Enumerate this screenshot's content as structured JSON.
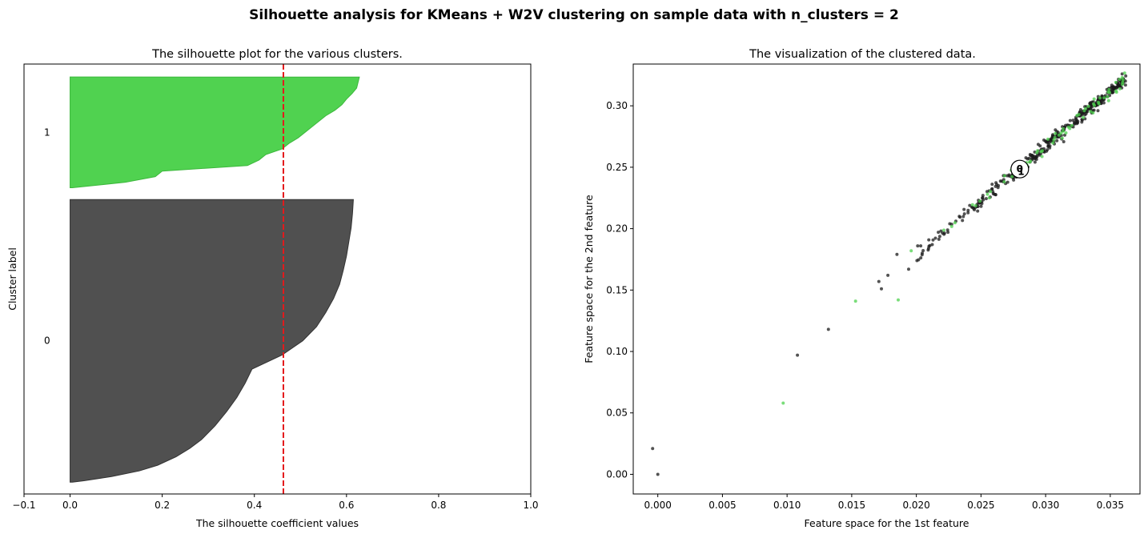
{
  "figure": {
    "suptitle": "Silhouette analysis for KMeans + W2V clustering on sample data with n_clusters = 2"
  },
  "colors": {
    "cluster_0": "#4d4d4d",
    "cluster_1": "#4dd14d",
    "average_line": "#e31a1c",
    "center_marker": "#ffffff"
  },
  "chart_data": [
    {
      "type": "area",
      "title": "The silhouette plot for the various clusters.",
      "xlabel": "The silhouette coefficient values",
      "ylabel": "Cluster label",
      "xlim": [
        -0.1,
        1.0
      ],
      "xticks": [
        -0.1,
        0.0,
        0.2,
        0.4,
        0.6,
        0.8,
        1.0
      ],
      "xtick_labels": [
        "−0.1",
        "0.0",
        "0.2",
        "0.4",
        "0.6",
        "0.8",
        "1.0"
      ],
      "average_silhouette": 0.463,
      "grid": false,
      "clusters": [
        {
          "label": "0",
          "size": 240,
          "y_range": [
            10,
            250
          ],
          "profile_top_to_bottom": [
            [
              0,
              0.615
            ],
            [
              0.05,
              0.613
            ],
            [
              0.1,
              0.61
            ],
            [
              0.15,
              0.605
            ],
            [
              0.2,
              0.6
            ],
            [
              0.25,
              0.593
            ],
            [
              0.3,
              0.585
            ],
            [
              0.35,
              0.572
            ],
            [
              0.4,
              0.555
            ],
            [
              0.45,
              0.535
            ],
            [
              0.5,
              0.505
            ],
            [
              0.55,
              0.46
            ],
            [
              0.6,
              0.395
            ],
            [
              0.65,
              0.38
            ],
            [
              0.7,
              0.362
            ],
            [
              0.75,
              0.34
            ],
            [
              0.8,
              0.315
            ],
            [
              0.85,
              0.285
            ],
            [
              0.88,
              0.26
            ],
            [
              0.91,
              0.23
            ],
            [
              0.94,
              0.19
            ],
            [
              0.96,
              0.15
            ],
            [
              0.98,
              0.09
            ],
            [
              0.995,
              0.03
            ],
            [
              1.0,
              0.005
            ]
          ]
        },
        {
          "label": "1",
          "size": 94,
          "y_range": [
            260,
            354
          ],
          "profile_top_to_bottom": [
            [
              0,
              0.628
            ],
            [
              0.05,
              0.625
            ],
            [
              0.1,
              0.622
            ],
            [
              0.15,
              0.612
            ],
            [
              0.2,
              0.6
            ],
            [
              0.25,
              0.59
            ],
            [
              0.3,
              0.575
            ],
            [
              0.35,
              0.555
            ],
            [
              0.4,
              0.54
            ],
            [
              0.45,
              0.525
            ],
            [
              0.5,
              0.51
            ],
            [
              0.55,
              0.495
            ],
            [
              0.6,
              0.475
            ],
            [
              0.65,
              0.46
            ],
            [
              0.7,
              0.425
            ],
            [
              0.75,
              0.41
            ],
            [
              0.8,
              0.385
            ],
            [
              0.85,
              0.2
            ],
            [
              0.9,
              0.185
            ],
            [
              0.95,
              0.12
            ],
            [
              1.0,
              0.005
            ]
          ]
        }
      ]
    },
    {
      "type": "scatter",
      "title": "The visualization of the clustered data.",
      "xlabel": "Feature space for the 1st feature",
      "ylabel": "Feature space for the 2nd feature",
      "xlim": [
        -0.0019,
        0.0373
      ],
      "ylim": [
        -0.016,
        0.334
      ],
      "xticks": [
        0.0,
        0.005,
        0.01,
        0.015,
        0.02,
        0.025,
        0.03,
        0.035
      ],
      "xtick_labels": [
        "0.000",
        "0.005",
        "0.010",
        "0.015",
        "0.020",
        "0.025",
        "0.030",
        "0.035"
      ],
      "yticks": [
        0.0,
        0.05,
        0.1,
        0.15,
        0.2,
        0.25,
        0.3
      ],
      "ytick_labels": [
        "0.00",
        "0.05",
        "0.10",
        "0.15",
        "0.20",
        "0.25",
        "0.30"
      ],
      "grid": false,
      "outliers": [
        {
          "x": -0.0004,
          "y": 0.021,
          "cluster": 0
        },
        {
          "x": 0.0,
          "y": 0.0,
          "cluster": 0
        },
        {
          "x": 0.0097,
          "y": 0.058,
          "cluster": 1
        },
        {
          "x": 0.0108,
          "y": 0.097,
          "cluster": 0
        },
        {
          "x": 0.0132,
          "y": 0.118,
          "cluster": 0
        },
        {
          "x": 0.0153,
          "y": 0.141,
          "cluster": 1
        },
        {
          "x": 0.0186,
          "y": 0.142,
          "cluster": 1
        },
        {
          "x": 0.0171,
          "y": 0.157,
          "cluster": 0
        },
        {
          "x": 0.0173,
          "y": 0.151,
          "cluster": 0
        },
        {
          "x": 0.0178,
          "y": 0.162,
          "cluster": 0
        },
        {
          "x": 0.0194,
          "y": 0.167,
          "cluster": 0
        },
        {
          "x": 0.0196,
          "y": 0.182,
          "cluster": 1
        },
        {
          "x": 0.0185,
          "y": 0.179,
          "cluster": 0
        },
        {
          "x": 0.0201,
          "y": 0.186,
          "cluster": 0
        }
      ],
      "dense_band": {
        "x_range": [
          0.0195,
          0.0362
        ],
        "slope": 8.9,
        "intercept": 0.0,
        "y_spread": 0.006,
        "points_cluster_0": 380,
        "points_cluster_1": 70
      },
      "centers": [
        {
          "label": "0",
          "x": 0.028,
          "y": 0.2485
        },
        {
          "label": "1",
          "x": 0.0281,
          "y": 0.2462
        }
      ]
    }
  ]
}
